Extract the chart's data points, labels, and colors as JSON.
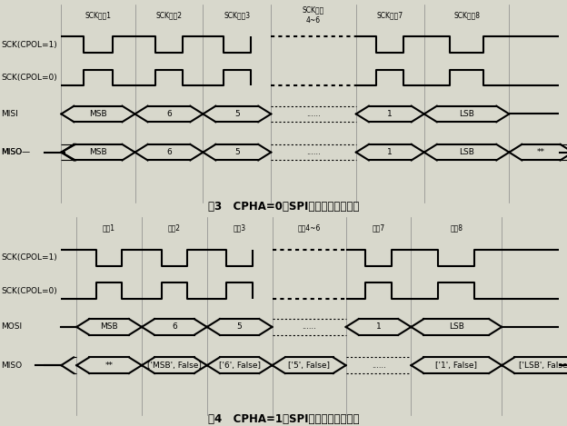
{
  "fig_width": 6.24,
  "fig_height": 4.69,
  "bg_color": "#d8d8cc",
  "line_color": "#000000",
  "fig3_title": "图3   CPHA=0时SPI总线数据传输时序",
  "fig4_title": "图4   CPHA=1时SPI总线数据传输时序",
  "fig3_period_labels": [
    "SCK周期1",
    "SCK周期2",
    "SCK周期3",
    "SCK周期\n4~6",
    "SCK周期7",
    "SCK周期8"
  ],
  "fig4_period_labels": [
    "周期1",
    "周期2",
    "周期3",
    "周期4~6",
    "周期7",
    "周期8"
  ],
  "fig3_signal_labels": [
    "SCK(CPOL=1)",
    "SCK(CPOL=0)",
    "MISI",
    "MISO"
  ],
  "fig4_signal_labels": [
    "SCK(CPOL=1)",
    "SCK(CPOL=0)",
    "MOSI",
    "MISO"
  ],
  "fig3_misi_segs": [
    [
      "MSB",
      false
    ],
    [
      "6",
      false
    ],
    [
      "5",
      false
    ],
    [
      "......",
      true
    ],
    [
      "1",
      false
    ],
    [
      "LSB",
      false
    ]
  ],
  "fig3_miso_segs": [
    [
      "MSB",
      false
    ],
    [
      "6",
      false
    ],
    [
      "5",
      false
    ],
    [
      "......",
      true
    ],
    [
      "1",
      false
    ],
    [
      "LSB",
      false
    ],
    [
      "**",
      false
    ]
  ],
  "fig4_mosi_segs": [
    [
      "MSB",
      false
    ],
    [
      "6",
      false
    ],
    [
      "5",
      false
    ],
    [
      "......",
      true
    ],
    [
      "1",
      false
    ],
    [
      "LSB",
      false
    ]
  ],
  "fig4_miso_segs": [
    [
      "**",
      false
    ],
    [
      "MSB",
      false
    ],
    [
      "6",
      false
    ],
    [
      "5",
      false
    ],
    [
      "......",
      true
    ],
    [
      "1",
      false
    ],
    [
      "LSB",
      false
    ]
  ]
}
